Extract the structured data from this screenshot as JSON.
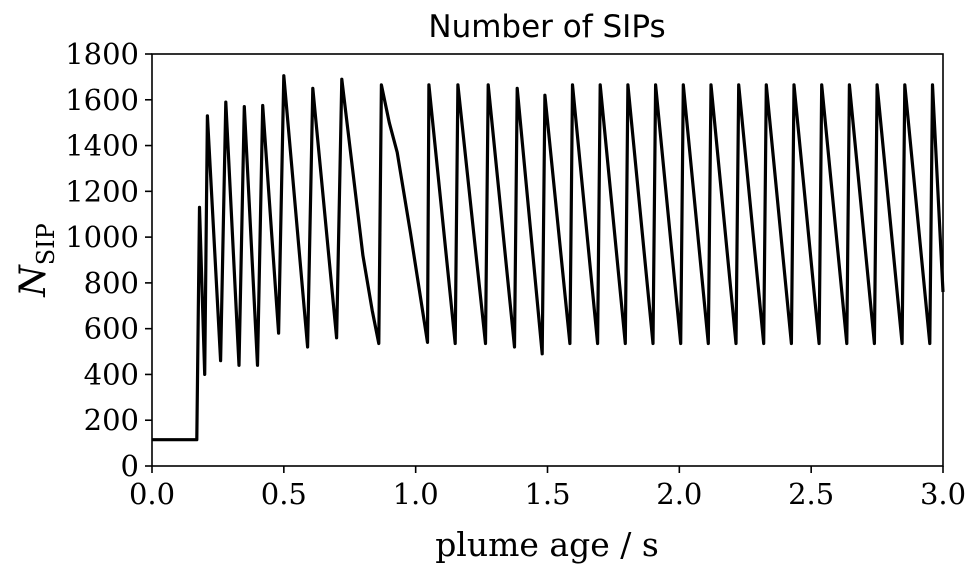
{
  "chart_data": {
    "type": "line",
    "title": "Number of SIPs",
    "xlabel": "plume age / s",
    "ylabel": "N",
    "ylabel_subscript": "SIP",
    "xlim": [
      0.0,
      3.0
    ],
    "ylim": [
      0,
      1800
    ],
    "x_ticks": [
      "0.0",
      "0.5",
      "1.0",
      "1.5",
      "2.0",
      "2.5",
      "3.0"
    ],
    "y_ticks": [
      "0",
      "200",
      "400",
      "600",
      "800",
      "1000",
      "1200",
      "1400",
      "1600",
      "1800"
    ],
    "grid": false,
    "line_color": "#000000",
    "series": [
      {
        "x": [
          0.0,
          0.17,
          0.17,
          0.18,
          0.2,
          0.21,
          0.26,
          0.28,
          0.33,
          0.35,
          0.4,
          0.42,
          0.48,
          0.5,
          0.59,
          0.61,
          0.7,
          0.72,
          0.8,
          0.835,
          0.86,
          0.87,
          0.9,
          0.93,
          0.98,
          1.045,
          1.05,
          1.15,
          1.16,
          1.265,
          1.275,
          1.375,
          1.385,
          1.48,
          1.49,
          1.585,
          1.595,
          1.69,
          1.7,
          1.795,
          1.805,
          1.9,
          1.91,
          2.005,
          2.015,
          2.11,
          2.12,
          2.215,
          2.225,
          2.32,
          2.33,
          2.425,
          2.435,
          2.53,
          2.54,
          2.635,
          2.645,
          2.74,
          2.75,
          2.845,
          2.855,
          2.95,
          2.96,
          3.0
        ],
        "y": [
          115,
          115,
          115,
          1130,
          400,
          1530,
          460,
          1590,
          440,
          1570,
          440,
          1575,
          580,
          1705,
          520,
          1650,
          560,
          1690,
          920,
          680,
          535,
          1665,
          1500,
          1370,
          1020,
          540,
          1665,
          535,
          1665,
          535,
          1665,
          520,
          1650,
          490,
          1620,
          535,
          1665,
          535,
          1665,
          535,
          1665,
          535,
          1665,
          535,
          1665,
          535,
          1665,
          535,
          1665,
          535,
          1665,
          535,
          1665,
          535,
          1665,
          535,
          1665,
          535,
          1665,
          535,
          1665,
          535,
          1665,
          760
        ]
      }
    ]
  }
}
